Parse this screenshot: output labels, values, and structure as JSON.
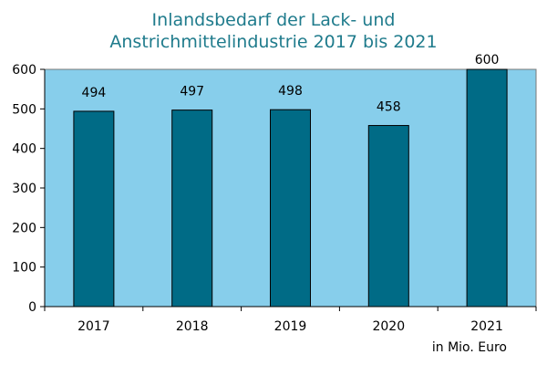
{
  "chart_data": {
    "type": "bar",
    "title_line1": "Inlandsbedarf der Lack- und",
    "title_line2": "Anstrichmittelindustrie 2017 bis 2021",
    "categories": [
      "2017",
      "2018",
      "2019",
      "2020",
      "2021"
    ],
    "values": [
      494,
      497,
      498,
      458,
      600
    ],
    "data_labels": [
      "494",
      "497",
      "498",
      "458",
      "600"
    ],
    "yticks": [
      "0",
      "100",
      "200",
      "300",
      "400",
      "500",
      "600"
    ],
    "ylim": [
      0,
      600
    ],
    "unit_note": "in Mio. Euro",
    "grid": false,
    "colors": {
      "plot_bg": "#87ceeb",
      "bar": "#006b86",
      "title": "#1f7b8c"
    }
  }
}
